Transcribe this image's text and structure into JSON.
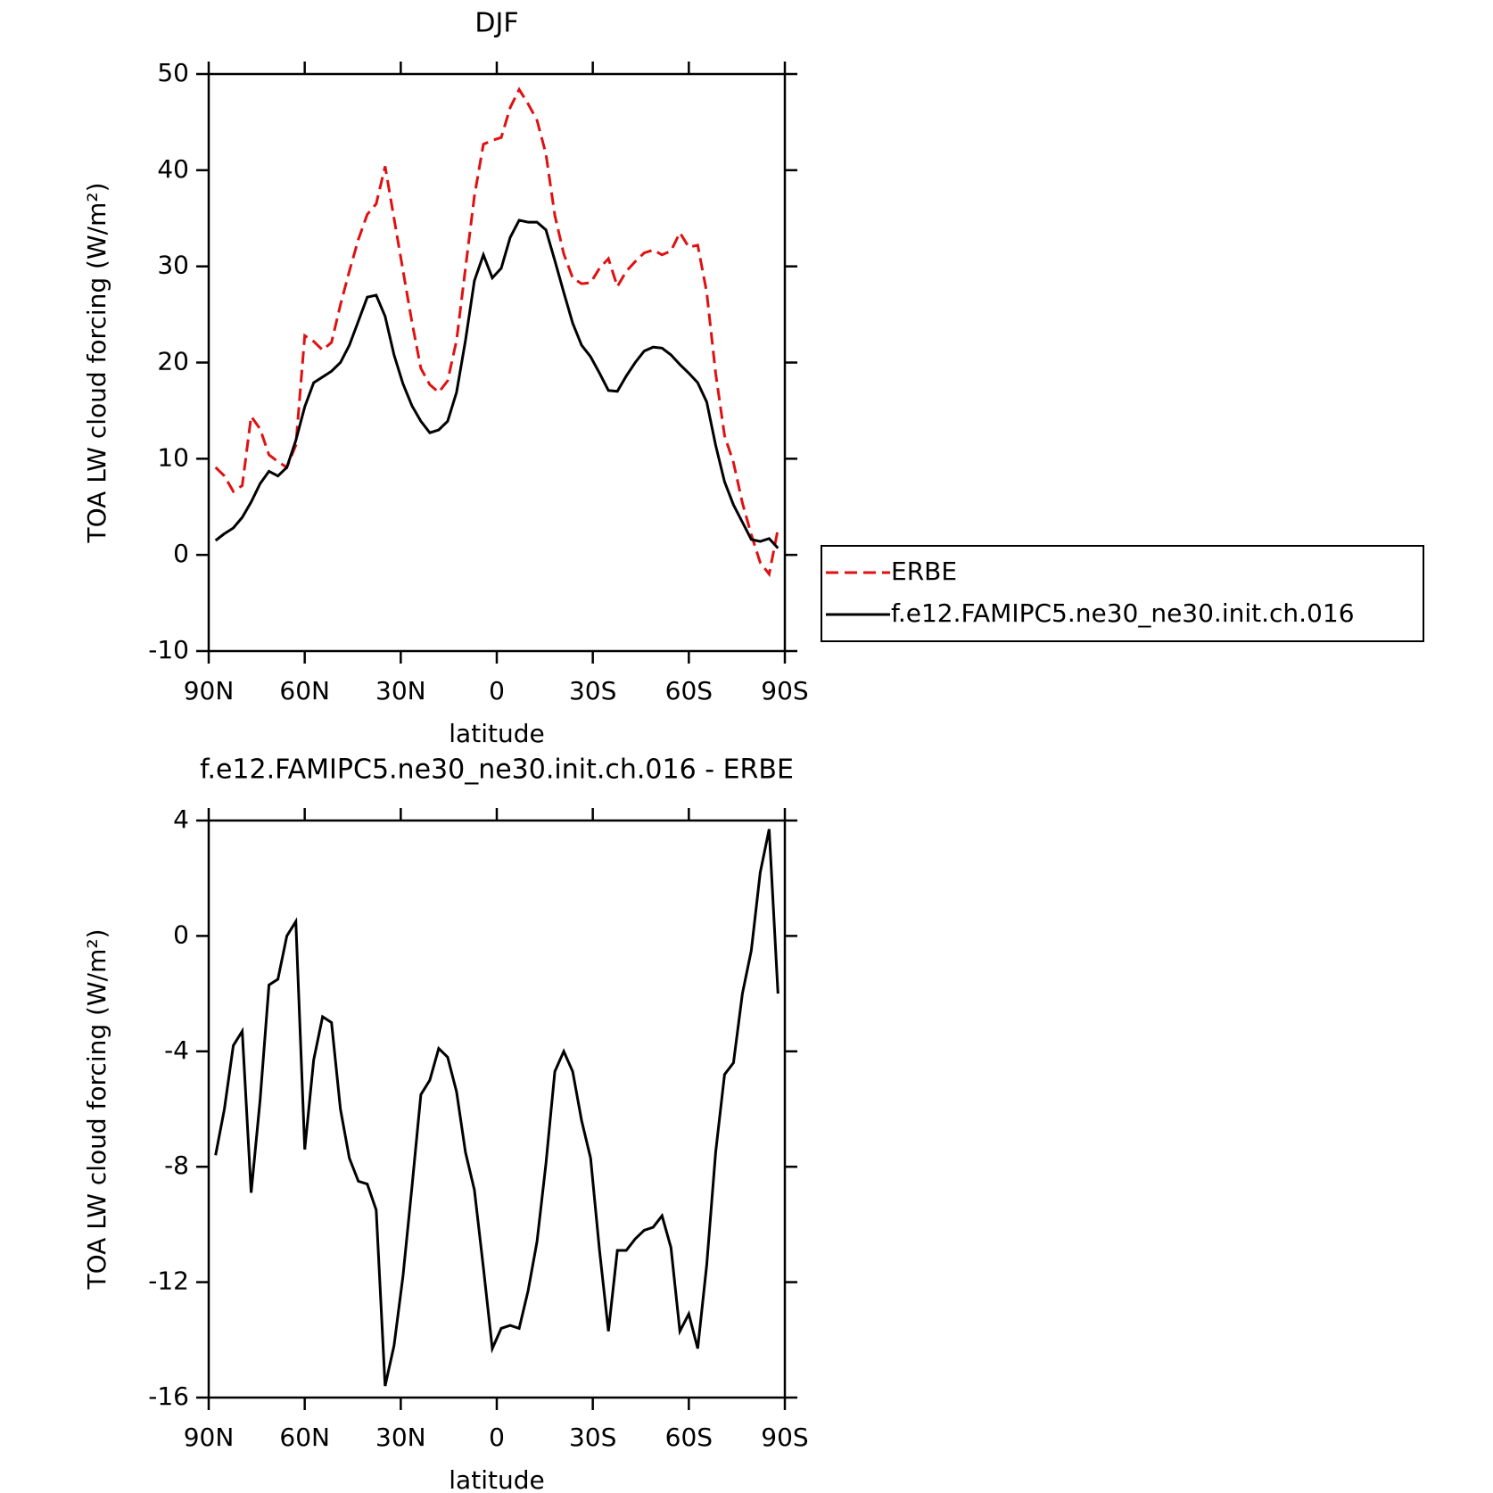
{
  "chart_data": [
    {
      "type": "line",
      "title": "DJF",
      "xlabel": "latitude",
      "ylabel": "TOA LW cloud forcing (W/m²)",
      "x": [
        87.86,
        85.1,
        82.31,
        79.53,
        76.74,
        73.95,
        71.16,
        68.37,
        65.58,
        62.79,
        60.0,
        57.21,
        54.42,
        51.63,
        48.84,
        46.05,
        43.25,
        40.46,
        37.67,
        34.88,
        32.09,
        29.3,
        26.51,
        23.72,
        20.93,
        18.14,
        15.35,
        12.56,
        9.77,
        6.98,
        4.19,
        1.4,
        -1.4,
        -4.19,
        -6.98,
        -9.77,
        -12.56,
        -15.35,
        -18.14,
        -20.93,
        -23.72,
        -26.51,
        -29.3,
        -32.09,
        -34.88,
        -37.67,
        -40.46,
        -43.25,
        -46.05,
        -48.84,
        -51.63,
        -54.42,
        -57.21,
        -60.0,
        -62.79,
        -65.58,
        -68.37,
        -71.16,
        -73.95,
        -76.74,
        -79.53,
        -82.31,
        -85.1,
        -87.86
      ],
      "series": [
        {
          "name": "ERBE",
          "color": "#e01010",
          "dash": true,
          "values": [
            9.1,
            8.2,
            6.6,
            7.2,
            14.4,
            13.1,
            10.4,
            9.7,
            9.1,
            11.4,
            22.8,
            22.2,
            21.3,
            22.1,
            26.0,
            29.5,
            32.8,
            35.4,
            36.5,
            40.4,
            35.0,
            29.6,
            24.2,
            19.4,
            17.7,
            16.9,
            18.1,
            22.3,
            29.8,
            37.3,
            42.7,
            43.1,
            43.4,
            46.5,
            48.4,
            46.9,
            45.2,
            41.7,
            35.3,
            31.3,
            28.8,
            28.2,
            28.3,
            29.8,
            30.8,
            27.9,
            29.5,
            30.5,
            31.4,
            31.7,
            31.2,
            31.6,
            33.5,
            32.0,
            32.2,
            27.3,
            18.9,
            12.4,
            9.6,
            5.4,
            2.1,
            -0.8,
            -2.0,
            2.7
          ]
        },
        {
          "name": "f.e12.FAMIPC5.ne30_ne30.init.ch.016",
          "color": "#000000",
          "dash": false,
          "values": [
            1.5,
            2.2,
            2.8,
            3.9,
            5.5,
            7.4,
            8.7,
            8.2,
            9.1,
            11.9,
            15.4,
            17.9,
            18.5,
            19.1,
            20.0,
            21.8,
            24.3,
            26.8,
            27.0,
            24.8,
            20.8,
            17.8,
            15.5,
            13.9,
            12.7,
            13.0,
            13.9,
            16.9,
            22.3,
            28.5,
            31.2,
            28.8,
            29.8,
            33.0,
            34.8,
            34.6,
            34.6,
            33.8,
            30.6,
            27.3,
            24.1,
            21.8,
            20.6,
            18.9,
            17.1,
            17.0,
            18.6,
            20.0,
            21.2,
            21.6,
            21.5,
            20.8,
            19.8,
            18.9,
            17.9,
            15.9,
            11.4,
            7.6,
            5.2,
            3.4,
            1.6,
            1.4,
            1.7,
            0.7
          ]
        }
      ],
      "xlim": [
        90,
        -90
      ],
      "xticks": [
        {
          "value": 90,
          "label": "90N"
        },
        {
          "value": 60,
          "label": "60N"
        },
        {
          "value": 30,
          "label": "30N"
        },
        0,
        {
          "value": -30,
          "label": "30S"
        },
        {
          "value": -60,
          "label": "60S"
        },
        {
          "value": -90,
          "label": "90S"
        }
      ],
      "ylim": [
        -10,
        50
      ],
      "yticks": [
        -10,
        0,
        10,
        20,
        30,
        40,
        50
      ],
      "legend": "right"
    },
    {
      "type": "line",
      "title": "f.e12.FAMIPC5.ne30_ne30.init.ch.016 - ERBE",
      "xlabel": "latitude",
      "ylabel": "TOA LW cloud forcing (W/m²)",
      "x": [
        87.86,
        85.1,
        82.31,
        79.53,
        76.74,
        73.95,
        71.16,
        68.37,
        65.58,
        62.79,
        60.0,
        57.21,
        54.42,
        51.63,
        48.84,
        46.05,
        43.25,
        40.46,
        37.67,
        34.88,
        32.09,
        29.3,
        26.51,
        23.72,
        20.93,
        18.14,
        15.35,
        12.56,
        9.77,
        6.98,
        4.19,
        1.4,
        -1.4,
        -4.19,
        -6.98,
        -9.77,
        -12.56,
        -15.35,
        -18.14,
        -20.93,
        -23.72,
        -26.51,
        -29.3,
        -32.09,
        -34.88,
        -37.67,
        -40.46,
        -43.25,
        -46.05,
        -48.84,
        -51.63,
        -54.42,
        -57.21,
        -60.0,
        -62.79,
        -65.58,
        -68.37,
        -71.16,
        -73.95,
        -76.74,
        -79.53,
        -82.31,
        -85.1,
        -87.86
      ],
      "values": [
        -7.6,
        -6.0,
        -3.8,
        -3.3,
        -8.9,
        -5.7,
        -1.7,
        -1.5,
        0.0,
        0.5,
        -7.4,
        -4.3,
        -2.8,
        -3.0,
        -6.0,
        -7.7,
        -8.5,
        -8.6,
        -9.5,
        -15.6,
        -14.2,
        -11.8,
        -8.7,
        -5.5,
        -5.0,
        -3.9,
        -4.2,
        -5.4,
        -7.5,
        -8.8,
        -11.5,
        -14.3,
        -13.6,
        -13.5,
        -13.6,
        -12.3,
        -10.6,
        -7.9,
        -4.7,
        -4.0,
        -4.7,
        -6.4,
        -7.7,
        -10.9,
        -13.7,
        -10.9,
        -10.9,
        -10.5,
        -10.2,
        -10.1,
        -9.7,
        -10.8,
        -13.7,
        -13.1,
        -14.3,
        -11.4,
        -7.5,
        -4.8,
        -4.4,
        -2.0,
        -0.5,
        2.2,
        3.7,
        -2.0
      ],
      "color": "#000000",
      "xlim": [
        90,
        -90
      ],
      "xticks": [
        {
          "value": 90,
          "label": "90N"
        },
        {
          "value": 60,
          "label": "60N"
        },
        {
          "value": 30,
          "label": "30N"
        },
        0,
        {
          "value": -30,
          "label": "30S"
        },
        {
          "value": -60,
          "label": "60S"
        },
        {
          "value": -90,
          "label": "90S"
        }
      ],
      "ylim": [
        -16,
        4
      ],
      "yticks": [
        -16,
        -12,
        -8,
        -4,
        0,
        4
      ]
    }
  ]
}
